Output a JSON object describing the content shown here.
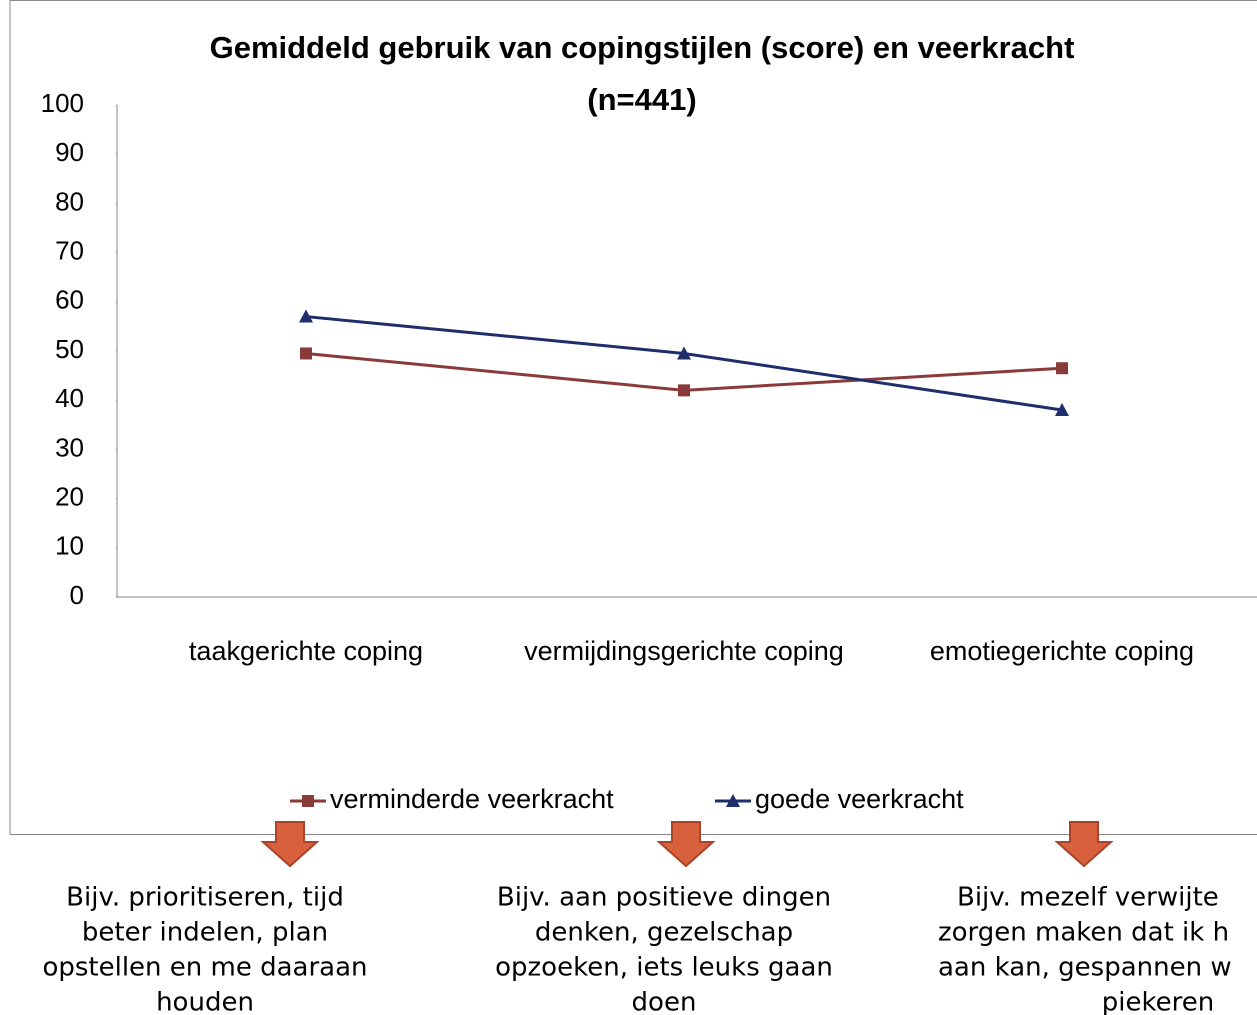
{
  "chart_data": {
    "type": "line",
    "title": "Gemiddeld gebruik van copingstijlen (score) en veerkracht",
    "subtitle": "(n=441)",
    "categories": [
      "taakgerichte coping",
      "vermijdingsgerichte coping",
      "emotiegerichte coping"
    ],
    "series": [
      {
        "name": "verminderde veerkracht",
        "color": "#8b3a3a",
        "marker": "square",
        "values": [
          49.5,
          42,
          46.5
        ]
      },
      {
        "name": "goede veerkracht",
        "color": "#1f2d6b",
        "marker": "triangle",
        "values": [
          57,
          49.5,
          38
        ]
      }
    ],
    "ylim": [
      0,
      100
    ],
    "yticks": [
      0,
      10,
      20,
      30,
      40,
      50,
      60,
      70,
      80,
      90,
      100
    ],
    "grid": false,
    "legend": "bottom",
    "annotations": [
      [
        "Bijv. prioritiseren, tijd",
        "beter indelen, plan",
        "opstellen en me daaraan",
        "houden"
      ],
      [
        "Bijv. aan positieve dingen",
        "denken, gezelschap",
        "opzoeken, iets leuks gaan",
        "doen"
      ],
      [
        "Bijv. mezelf verwijte",
        "zorgen maken dat ik h",
        "aan kan, gespannen w",
        "piekeren"
      ]
    ]
  }
}
